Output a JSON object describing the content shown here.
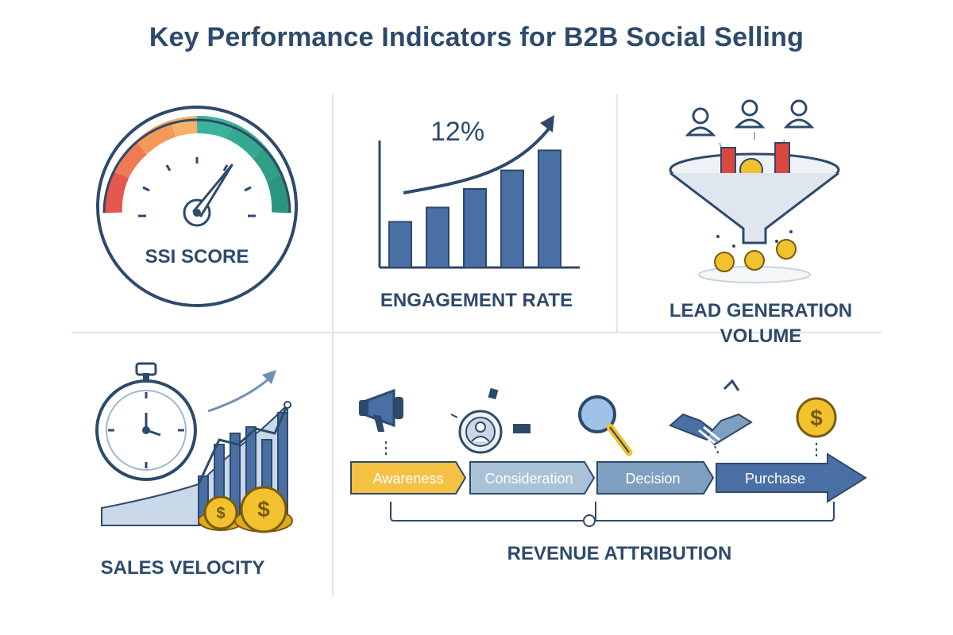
{
  "title": "Key Performance Indicators for B2B Social Selling",
  "kpis": {
    "ssi": {
      "label": "SSI SCORE",
      "gauge_level": 0.72
    },
    "engagement": {
      "label": "ENGAGEMENT RATE",
      "value_text": "12%",
      "bars": [
        0.32,
        0.42,
        0.55,
        0.68,
        0.82
      ]
    },
    "leads": {
      "label_line1": "LEAD GENERATION",
      "label_line2": "VOLUME"
    },
    "velocity": {
      "label": "SALES VELOCITY"
    },
    "revenue": {
      "label": "REVENUE ATTRIBUTION",
      "stages": [
        "Awareness",
        "Consideration",
        "Decision",
        "Purchase"
      ],
      "coin_symbol": "$"
    }
  },
  "colors": {
    "navy": "#2e4a6b",
    "bar_blue": "#4a6fa5",
    "light_blue": "#9fb8d3",
    "awareness": "#f5c144",
    "consideration": "#a9c2d8",
    "decision": "#7f9fc0",
    "purchase": "#4a6fa5",
    "gold": "#f2c12e",
    "red": "#d9473f",
    "teal": "#3bb39a",
    "orange": "#f39a5a"
  },
  "icons": [
    "gauge-icon",
    "bar-chart-icon",
    "funnel-icon",
    "stopwatch-icon",
    "megaphone-icon",
    "profile-icon",
    "magnifier-icon",
    "handshake-icon",
    "coin-icon",
    "person-icon"
  ]
}
